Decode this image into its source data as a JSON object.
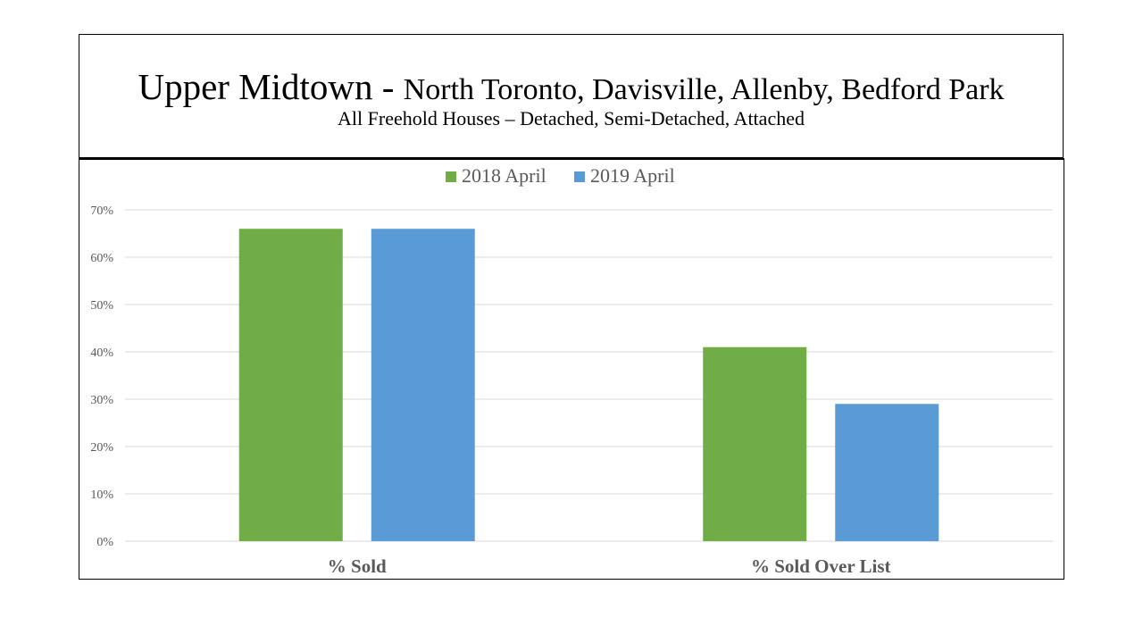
{
  "header": {
    "title_main": "Upper Midtown - ",
    "title_sub": "North Toronto, Davisville, Allenby, Bedford Park",
    "subtitle": "All Freehold Houses – Detached, Semi-Detached, Attached"
  },
  "chart_data": {
    "type": "bar",
    "categories": [
      "% Sold",
      "% Sold Over List"
    ],
    "series": [
      {
        "name": "2018 April",
        "color": "#70ad47",
        "values": [
          66,
          41
        ]
      },
      {
        "name": "2019 April",
        "color": "#5b9bd5",
        "values": [
          66,
          29
        ]
      }
    ],
    "ylim": [
      0,
      70
    ],
    "yticks": [
      0,
      10,
      20,
      30,
      40,
      50,
      60,
      70
    ],
    "ytick_labels": [
      "0%",
      "10%",
      "20%",
      "30%",
      "40%",
      "50%",
      "60%",
      "70%"
    ],
    "grid": true,
    "legend_position": "top-center"
  }
}
